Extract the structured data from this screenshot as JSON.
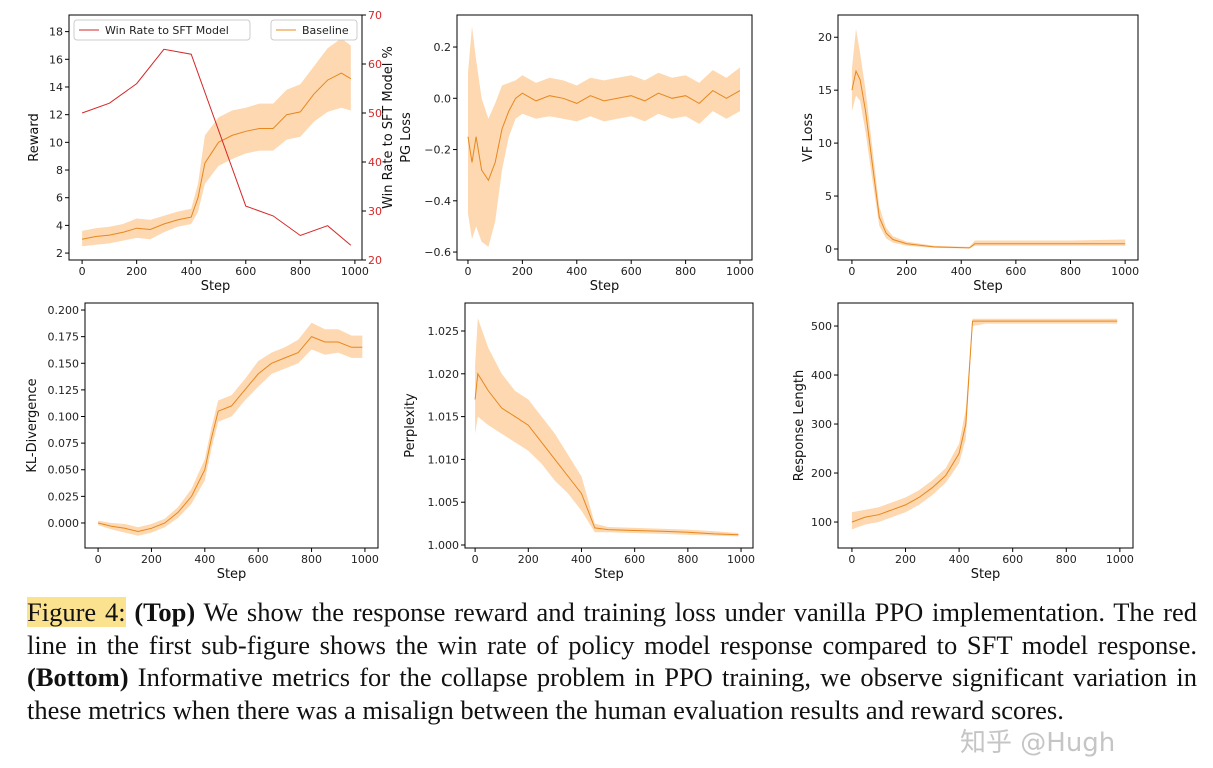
{
  "chart_data": [
    {
      "type": "line",
      "id": "reward",
      "xlabel": "Step",
      "ylabel": "Reward",
      "ylabel_right": "Win Rate to SFT Model %",
      "xlim": [
        -48,
        1026
      ],
      "ylim": [
        1.5,
        19.2
      ],
      "ylim_right": [
        20,
        70
      ],
      "xticks": [
        0,
        200,
        400,
        600,
        800,
        1000
      ],
      "yticks": [
        2,
        4,
        6,
        8,
        10,
        12,
        14,
        16,
        18
      ],
      "yticks_right": [
        20,
        30,
        40,
        50,
        60,
        70
      ],
      "legend": [
        {
          "label": "Win Rate to SFT Model",
          "position": "top-left"
        },
        {
          "label": "Baseline",
          "position": "top-right"
        }
      ],
      "series": [
        {
          "name": "Baseline",
          "color": "#e8871e",
          "band_color": "#fdd8b0",
          "x": [
            0,
            50,
            100,
            150,
            200,
            250,
            300,
            350,
            400,
            425,
            450,
            500,
            550,
            600,
            650,
            700,
            750,
            800,
            850,
            900,
            950,
            985
          ],
          "y": [
            3.0,
            3.2,
            3.3,
            3.5,
            3.8,
            3.7,
            4.1,
            4.4,
            4.6,
            6.0,
            8.5,
            10.0,
            10.5,
            10.8,
            11.0,
            11.0,
            12.0,
            12.2,
            13.5,
            14.5,
            15.0,
            14.6
          ],
          "lower": [
            2.5,
            2.6,
            2.7,
            2.9,
            3.1,
            3.0,
            3.5,
            3.9,
            4.1,
            5.0,
            7.0,
            8.3,
            8.8,
            9.2,
            9.4,
            9.4,
            10.2,
            10.4,
            11.5,
            12.2,
            12.5,
            12.3
          ],
          "upper": [
            3.6,
            3.8,
            3.9,
            4.1,
            4.5,
            4.4,
            4.7,
            5.0,
            5.2,
            7.0,
            10.5,
            11.8,
            12.3,
            12.5,
            12.8,
            12.8,
            13.8,
            14.2,
            15.5,
            16.8,
            17.5,
            17.0
          ]
        },
        {
          "name": "Win Rate to SFT Model",
          "axis": "right",
          "color": "#d62728",
          "x": [
            0,
            100,
            200,
            300,
            400,
            600,
            700,
            800,
            900,
            985
          ],
          "y": [
            50,
            52,
            56,
            63,
            62,
            31,
            29,
            25,
            27,
            23
          ]
        }
      ]
    },
    {
      "type": "line",
      "id": "pg-loss",
      "xlabel": "Step",
      "ylabel": "PG Loss",
      "xlim": [
        -191,
        1044
      ],
      "ylim": [
        -0.631,
        0.325
      ],
      "xticks": [
        0,
        200,
        400,
        600,
        800,
        1000
      ],
      "yticks": [
        -0.6,
        -0.4,
        -0.2,
        0.0,
        0.2
      ],
      "ytick_labels": [
        "−0.6",
        "−0.4",
        "−0.2",
        "0.0",
        "0.2"
      ],
      "series": [
        {
          "color": "#e8871e",
          "band_color": "#fdd8b0",
          "x": [
            0,
            15,
            30,
            50,
            75,
            100,
            125,
            150,
            175,
            200,
            250,
            300,
            350,
            400,
            450,
            500,
            550,
            600,
            650,
            700,
            750,
            800,
            850,
            900,
            950,
            1000
          ],
          "y": [
            -0.15,
            -0.25,
            -0.15,
            -0.28,
            -0.32,
            -0.25,
            -0.12,
            -0.05,
            0.0,
            0.02,
            -0.01,
            0.01,
            0.0,
            -0.02,
            0.01,
            -0.01,
            0.0,
            0.01,
            -0.01,
            0.02,
            0.0,
            0.01,
            -0.02,
            0.03,
            0.0,
            0.03
          ],
          "lower": [
            -0.45,
            -0.55,
            -0.5,
            -0.56,
            -0.58,
            -0.48,
            -0.28,
            -0.15,
            -0.08,
            -0.06,
            -0.08,
            -0.07,
            -0.08,
            -0.09,
            -0.07,
            -0.09,
            -0.08,
            -0.07,
            -0.09,
            -0.06,
            -0.08,
            -0.07,
            -0.1,
            -0.05,
            -0.08,
            -0.05
          ],
          "upper": [
            0.1,
            0.28,
            0.15,
            0.0,
            -0.08,
            -0.02,
            0.05,
            0.06,
            0.07,
            0.09,
            0.06,
            0.08,
            0.07,
            0.05,
            0.08,
            0.07,
            0.08,
            0.09,
            0.07,
            0.1,
            0.08,
            0.09,
            0.06,
            0.11,
            0.08,
            0.12
          ]
        }
      ]
    },
    {
      "type": "line",
      "id": "vf-loss",
      "xlabel": "Step",
      "ylabel": "VF Loss",
      "xlim": [
        -51,
        1047
      ],
      "ylim": [
        -1.04,
        22.1
      ],
      "xticks": [
        0,
        200,
        400,
        600,
        800,
        1000
      ],
      "yticks": [
        0,
        5,
        10,
        15,
        20
      ],
      "series": [
        {
          "color": "#e8871e",
          "band_color": "#fdd8b0",
          "x": [
            0,
            15,
            30,
            50,
            75,
            100,
            125,
            150,
            200,
            300,
            430,
            450,
            600,
            800,
            1000
          ],
          "y": [
            15,
            16.8,
            16,
            13,
            8,
            3,
            1.5,
            0.9,
            0.5,
            0.2,
            0.1,
            0.5,
            0.5,
            0.5,
            0.5
          ],
          "lower": [
            13,
            14.5,
            14,
            11,
            6.5,
            2.2,
            1.0,
            0.6,
            0.3,
            0.1,
            0.05,
            0.3,
            0.3,
            0.3,
            0.3
          ],
          "upper": [
            17,
            20.8,
            18.5,
            15,
            9.5,
            4,
            2.0,
            1.2,
            0.7,
            0.3,
            0.2,
            0.8,
            0.8,
            0.8,
            0.9
          ]
        }
      ]
    },
    {
      "type": "line",
      "id": "kl-divergence",
      "xlabel": "Step",
      "ylabel": "KL-Divergence",
      "xlim": [
        -49,
        1049
      ],
      "ylim": [
        -0.0235,
        0.2066
      ],
      "xticks": [
        0,
        200,
        400,
        600,
        800,
        1000
      ],
      "yticks": [
        0.0,
        0.025,
        0.05,
        0.075,
        0.1,
        0.125,
        0.15,
        0.175,
        0.2
      ],
      "ytick_labels": [
        "0.000",
        "0.025",
        "0.050",
        "0.075",
        "0.100",
        "0.125",
        "0.150",
        "0.175",
        "0.200"
      ],
      "series": [
        {
          "color": "#e8871e",
          "band_color": "#fdd8b0",
          "x": [
            0,
            50,
            100,
            150,
            200,
            250,
            300,
            350,
            400,
            425,
            450,
            500,
            550,
            600,
            650,
            700,
            750,
            800,
            850,
            900,
            950,
            990
          ],
          "y": [
            0,
            -0.003,
            -0.005,
            -0.008,
            -0.005,
            0.0,
            0.01,
            0.025,
            0.05,
            0.08,
            0.105,
            0.11,
            0.125,
            0.14,
            0.15,
            0.155,
            0.16,
            0.175,
            0.17,
            0.17,
            0.165,
            0.165
          ],
          "lower": [
            -0.002,
            -0.006,
            -0.009,
            -0.012,
            -0.009,
            -0.004,
            0.005,
            0.018,
            0.04,
            0.07,
            0.095,
            0.1,
            0.115,
            0.128,
            0.14,
            0.145,
            0.15,
            0.163,
            0.158,
            0.16,
            0.155,
            0.155
          ],
          "upper": [
            0.002,
            0.0,
            -0.001,
            -0.004,
            -0.001,
            0.004,
            0.015,
            0.032,
            0.06,
            0.09,
            0.115,
            0.12,
            0.135,
            0.152,
            0.16,
            0.165,
            0.172,
            0.188,
            0.182,
            0.182,
            0.176,
            0.176
          ]
        }
      ]
    },
    {
      "type": "line",
      "id": "perplexity",
      "xlabel": "Step",
      "ylabel": "Perplexity",
      "xlim": [
        -38,
        1045
      ],
      "ylim": [
        0.99965,
        1.02827
      ],
      "xticks": [
        0,
        200,
        400,
        600,
        800,
        1000
      ],
      "yticks": [
        1.0,
        1.005,
        1.01,
        1.015,
        1.02,
        1.025
      ],
      "ytick_labels": [
        "1.000",
        "1.005",
        "1.010",
        "1.015",
        "1.020",
        "1.025"
      ],
      "series": [
        {
          "color": "#e8871e",
          "band_color": "#fdd8b0",
          "x": [
            0,
            10,
            50,
            100,
            150,
            200,
            250,
            300,
            350,
            400,
            450,
            500,
            600,
            700,
            800,
            900,
            990
          ],
          "y": [
            1.017,
            1.02,
            1.018,
            1.016,
            1.015,
            1.014,
            1.012,
            1.01,
            1.008,
            1.006,
            1.002,
            1.0018,
            1.0017,
            1.0016,
            1.0015,
            1.0013,
            1.0012
          ],
          "lower": [
            1.013,
            1.015,
            1.014,
            1.013,
            1.012,
            1.011,
            1.0095,
            1.0075,
            1.006,
            1.004,
            1.0015,
            1.0015,
            1.0014,
            1.0013,
            1.0012,
            1.0011,
            1.001
          ],
          "upper": [
            1.021,
            1.0265,
            1.023,
            1.02,
            1.018,
            1.017,
            1.015,
            1.013,
            1.0105,
            1.008,
            1.0025,
            1.0021,
            1.002,
            1.0019,
            1.0018,
            1.0016,
            1.0014
          ]
        }
      ]
    },
    {
      "type": "line",
      "id": "response-length",
      "xlabel": "Step",
      "ylabel": "Response Length",
      "xlim": [
        -52,
        1049
      ],
      "ylim": [
        47,
        547
      ],
      "xticks": [
        0,
        200,
        400,
        600,
        800,
        1000
      ],
      "yticks": [
        100,
        200,
        300,
        400,
        500
      ],
      "series": [
        {
          "color": "#e8871e",
          "band_color": "#fdd8b0",
          "x": [
            0,
            50,
            100,
            150,
            200,
            250,
            300,
            350,
            400,
            425,
            450,
            500,
            600,
            700,
            800,
            900,
            990
          ],
          "y": [
            100,
            110,
            115,
            125,
            135,
            150,
            170,
            195,
            240,
            300,
            510,
            510,
            510,
            510,
            510,
            510,
            510
          ],
          "lower": [
            85,
            95,
            100,
            110,
            120,
            135,
            155,
            180,
            220,
            270,
            500,
            505,
            505,
            505,
            505,
            505,
            505
          ],
          "upper": [
            120,
            125,
            130,
            140,
            150,
            165,
            185,
            210,
            260,
            330,
            515,
            515,
            515,
            515,
            515,
            515,
            515
          ]
        }
      ]
    }
  ],
  "caption": {
    "figure_label": "Figure 4:",
    "top_label": "(Top)",
    "text1": " We show the response reward and training loss under vanilla PPO implementation. The red line in the first sub-figure shows the win rate of policy model response compared to SFT model response. ",
    "bottom_label": "(Bottom)",
    "text2": " Informative metrics for the collapse problem in PPO training, we observe significant variation in these metrics when there was a misalign between the human evaluation results and reward scores."
  },
  "watermark": "知乎 @Hugh"
}
